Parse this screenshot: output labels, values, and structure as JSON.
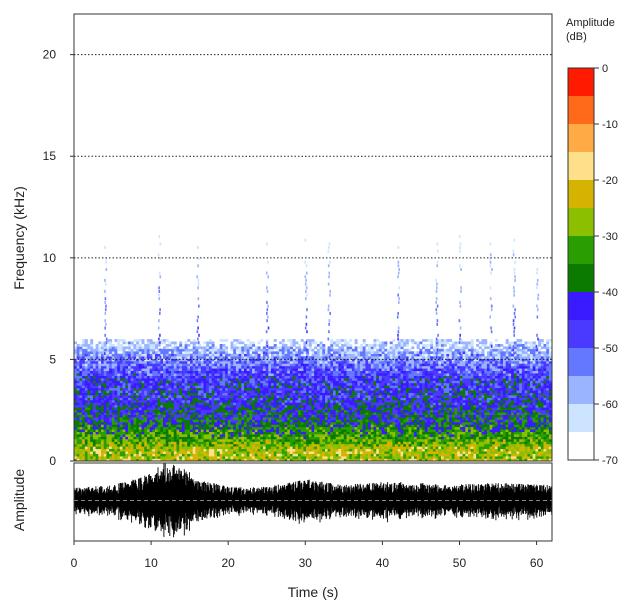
{
  "chart_data": [
    {
      "type": "heatmap",
      "title": "",
      "xlabel": "Time (s)",
      "ylabel": "Frequency (kHz)",
      "xlim": [
        0,
        62
      ],
      "ylim": [
        0,
        22
      ],
      "xticks": [
        0,
        10,
        20,
        30,
        40,
        50,
        60
      ],
      "yticks": [
        0,
        5,
        10,
        15,
        20
      ],
      "gridlines_y": [
        5,
        10,
        15,
        20
      ],
      "grid": "dotted horizontal",
      "colorbar": {
        "title": "Amplitude\n(dB)",
        "title_lines": [
          "Amplitude",
          "(dB)"
        ],
        "range": [
          -70,
          0
        ],
        "ticks": [
          0,
          -10,
          -20,
          -30,
          -40,
          -50,
          -60,
          -70
        ],
        "colors": [
          "#ff1a00",
          "#ff6a1a",
          "#ffaa44",
          "#ffe08a",
          "#d4b400",
          "#8cbf00",
          "#2a9d00",
          "#0a7a00",
          "#3a1aff",
          "#4a3aff",
          "#6478ff",
          "#9ab4ff",
          "#cce4ff",
          "#ffffff"
        ]
      },
      "energy_profile_by_frequency_khz": [
        {
          "f": 0.5,
          "level_db": -25
        },
        {
          "f": 1.0,
          "level_db": -32
        },
        {
          "f": 2.0,
          "level_db": -40
        },
        {
          "f": 3.0,
          "level_db": -44
        },
        {
          "f": 4.0,
          "level_db": -46
        },
        {
          "f": 5.0,
          "level_db": -55
        },
        {
          "f": 6.0,
          "level_db": -65
        }
      ],
      "vertical_spikes_s": [
        4,
        11,
        16,
        25,
        30,
        33,
        42,
        47,
        50,
        54,
        57,
        60
      ]
    },
    {
      "type": "line",
      "title": "",
      "xlabel": "Time (s)",
      "ylabel": "Amplitude",
      "xlim": [
        0,
        62
      ],
      "xticks": [
        0,
        10,
        20,
        30,
        40,
        50,
        60
      ],
      "series": [
        {
          "values_envelope": [
            {
              "t": 0,
              "a": 0.35
            },
            {
              "t": 5,
              "a": 0.4
            },
            {
              "t": 8,
              "a": 0.55
            },
            {
              "t": 10,
              "a": 0.75
            },
            {
              "t": 12,
              "a": 1.0
            },
            {
              "t": 14,
              "a": 0.9
            },
            {
              "t": 16,
              "a": 0.55
            },
            {
              "t": 20,
              "a": 0.35
            },
            {
              "t": 25,
              "a": 0.35
            },
            {
              "t": 30,
              "a": 0.55
            },
            {
              "t": 35,
              "a": 0.4
            },
            {
              "t": 42,
              "a": 0.5
            },
            {
              "t": 48,
              "a": 0.4
            },
            {
              "t": 55,
              "a": 0.45
            },
            {
              "t": 62,
              "a": 0.4
            }
          ]
        }
      ]
    }
  ]
}
